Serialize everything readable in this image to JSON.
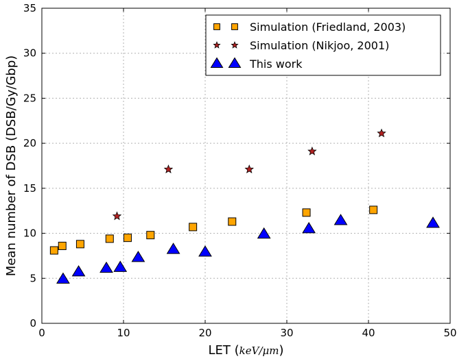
{
  "chart_data": {
    "type": "scatter",
    "xlabel_prefix": "LET (",
    "xlabel_unit": "keV/μm",
    "xlabel_suffix": ")",
    "ylabel": "Mean number of DSB (DSB/Gy/Gbp)",
    "xlim": [
      0,
      50
    ],
    "ylim": [
      0,
      35
    ],
    "xticks": [
      0,
      10,
      20,
      30,
      40,
      50
    ],
    "yticks": [
      0,
      5,
      10,
      15,
      20,
      25,
      30,
      35
    ],
    "grid": true,
    "legend_position": "top-right",
    "series": [
      {
        "name": "Simulation (Friedland, 2003)",
        "marker": "square",
        "color": "#ffa500",
        "x": [
          1.5,
          2.5,
          4.7,
          8.3,
          10.5,
          13.3,
          18.5,
          23.3,
          32.4,
          40.6
        ],
        "y": [
          8.1,
          8.6,
          8.8,
          9.4,
          9.5,
          9.8,
          10.7,
          11.3,
          12.3,
          12.6
        ]
      },
      {
        "name": "Simulation (Nikjoo, 2001)",
        "marker": "star",
        "color": "#b22222",
        "x": [
          9.2,
          15.5,
          25.4,
          33.1,
          41.6
        ],
        "y": [
          11.9,
          17.1,
          17.1,
          19.1,
          21.1
        ]
      },
      {
        "name": "This work",
        "marker": "triangle",
        "color": "#0000ff",
        "x": [
          2.6,
          4.5,
          7.9,
          9.6,
          11.8,
          16.1,
          20.0,
          27.2,
          32.7,
          36.6,
          47.9
        ],
        "y": [
          4.9,
          5.7,
          6.1,
          6.2,
          7.3,
          8.2,
          7.9,
          9.9,
          10.5,
          11.4,
          11.1
        ]
      }
    ]
  }
}
